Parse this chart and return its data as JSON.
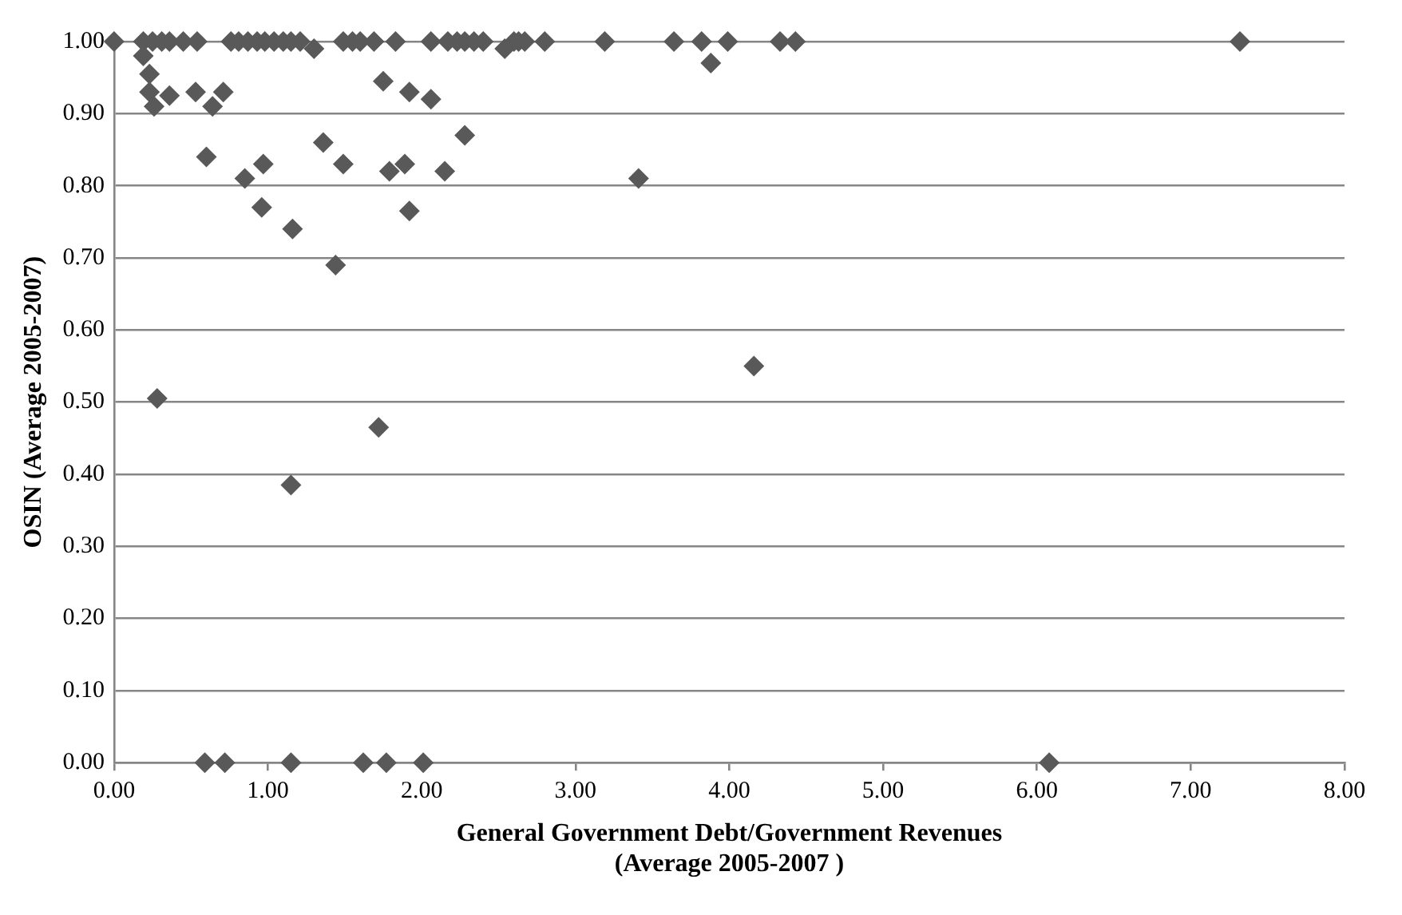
{
  "chart_data": {
    "type": "scatter",
    "xlabel": "General Government Debt/Government Revenues\n(Average 2005-2007 )",
    "ylabel": "OSIN (Average 2005-2007)",
    "xlim": [
      0,
      8
    ],
    "xticks": [
      {
        "value": 0,
        "label": "0.00"
      },
      {
        "value": 1,
        "label": "1.00"
      },
      {
        "value": 2,
        "label": "2.00"
      },
      {
        "value": 3,
        "label": "3.00"
      },
      {
        "value": 4,
        "label": "4.00"
      },
      {
        "value": 5,
        "label": "5.00"
      },
      {
        "value": 6,
        "label": "6.00"
      },
      {
        "value": 7,
        "label": "7.00"
      },
      {
        "value": 8,
        "label": "8.00"
      }
    ],
    "ylim": [
      0,
      1
    ],
    "yticks": [
      {
        "value": 0,
        "label": "0.00"
      },
      {
        "value": 0.1,
        "label": "0.10"
      },
      {
        "value": 0.2,
        "label": "0.20"
      },
      {
        "value": 0.3,
        "label": "0.30"
      },
      {
        "value": 0.4,
        "label": "0.40"
      },
      {
        "value": 0.5,
        "label": "0.50"
      },
      {
        "value": 0.6,
        "label": "0.60"
      },
      {
        "value": 0.7,
        "label": "0.70"
      },
      {
        "value": 0.8,
        "label": "0.80"
      },
      {
        "value": 0.9,
        "label": "0.90"
      },
      {
        "value": 1,
        "label": "1.00"
      }
    ],
    "grid": "y",
    "legend": false,
    "marker": "diamond",
    "series": [
      {
        "color": "#595959",
        "x": [
          0.0,
          0.19,
          0.25,
          0.31,
          0.36,
          0.45,
          0.54,
          0.76,
          0.81,
          0.87,
          0.93,
          0.98,
          1.04,
          1.1,
          1.15,
          1.21,
          1.3,
          1.49,
          1.55,
          1.6,
          1.69,
          1.83,
          2.06,
          2.17,
          2.23,
          2.28,
          2.34,
          2.4,
          2.54,
          2.6,
          2.63,
          2.67,
          2.8,
          3.19,
          3.64,
          3.82,
          3.99,
          4.33,
          4.43,
          7.32,
          3.88,
          0.19,
          0.23,
          0.23,
          0.26,
          0.36,
          0.53,
          0.64,
          0.71,
          0.6,
          0.85,
          0.97,
          0.96,
          1.16,
          1.36,
          1.49,
          1.44,
          1.75,
          1.92,
          2.06,
          1.79,
          1.89,
          1.92,
          2.15,
          2.28,
          0.28,
          3.41,
          4.16,
          1.72,
          1.15,
          0.59,
          0.72,
          1.15,
          1.62,
          1.77,
          2.01,
          6.08
        ],
        "values": [
          1.0,
          1.0,
          1.0,
          1.0,
          1.0,
          1.0,
          1.0,
          1.0,
          1.0,
          1.0,
          1.0,
          1.0,
          1.0,
          1.0,
          1.0,
          1.0,
          0.99,
          1.0,
          1.0,
          1.0,
          1.0,
          1.0,
          1.0,
          1.0,
          1.0,
          1.0,
          1.0,
          1.0,
          0.99,
          1.0,
          1.0,
          1.0,
          1.0,
          1.0,
          1.0,
          1.0,
          1.0,
          1.0,
          1.0,
          1.0,
          0.97,
          0.98,
          0.955,
          0.93,
          0.91,
          0.925,
          0.93,
          0.91,
          0.93,
          0.84,
          0.81,
          0.83,
          0.77,
          0.74,
          0.86,
          0.83,
          0.69,
          0.945,
          0.93,
          0.92,
          0.82,
          0.83,
          0.765,
          0.82,
          0.87,
          0.505,
          0.81,
          0.55,
          0.465,
          0.385,
          0,
          0,
          0,
          0,
          0,
          0,
          0
        ]
      }
    ]
  }
}
